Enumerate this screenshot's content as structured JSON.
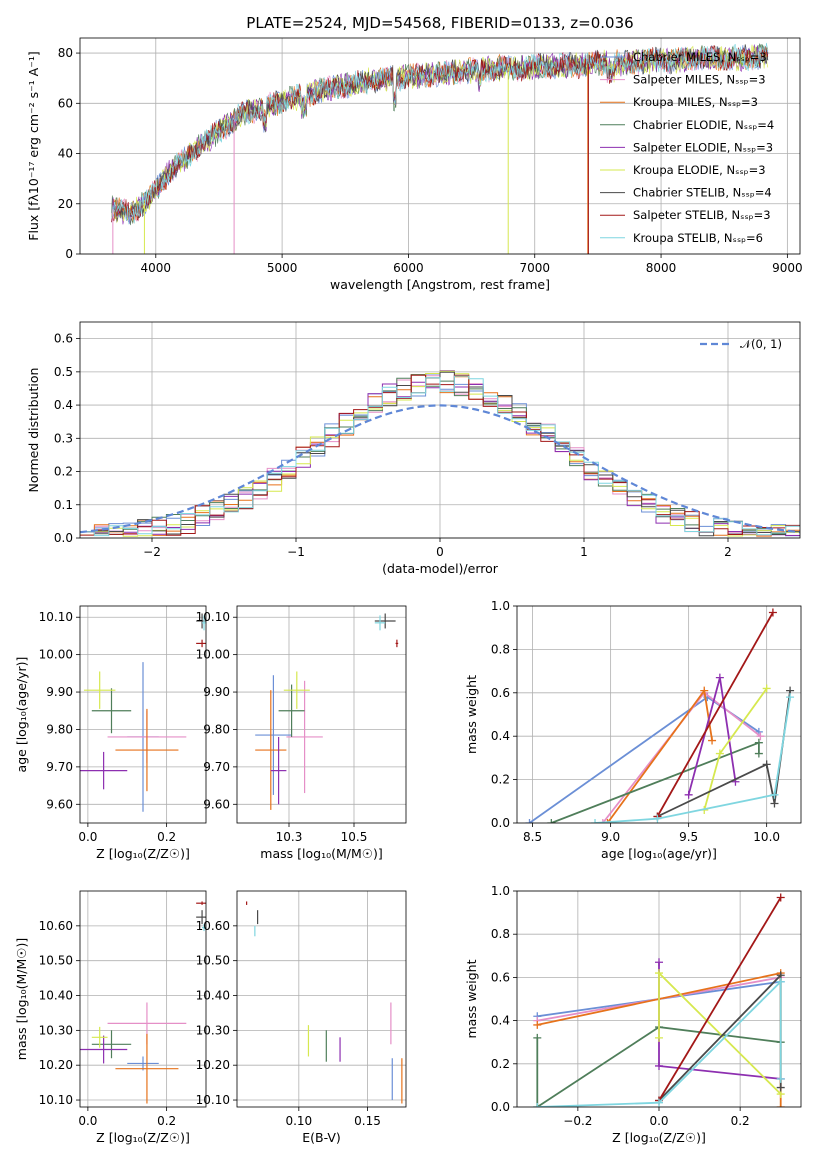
{
  "title": "PLATE=2524, MJD=54568, FIBERID=0133, z=0.036",
  "colors": {
    "Chabrier MILES": "#6b8fd6",
    "Salpeter MILES": "#e58fc7",
    "Kroupa MILES": "#e6721b",
    "Chabrier ELODIE": "#4f7e5a",
    "Salpeter ELODIE": "#8d2fb0",
    "Kroupa ELODIE": "#d6e84f",
    "Chabrier STELIB": "#4a4a4a",
    "Salpeter STELIB": "#a31818",
    "Kroupa STELIB": "#7fd6e0"
  },
  "chart_data": [
    {
      "id": "spectrum",
      "type": "line",
      "xlabel": "wavelength [Angstrom, rest frame]",
      "ylabel": "Flux [fλ10⁻¹⁷ erg cm⁻² s⁻¹ A⁻¹]",
      "xlim": [
        3400,
        9100
      ],
      "ylim": [
        0,
        86
      ],
      "xticks": [
        4000,
        5000,
        6000,
        7000,
        8000,
        9000
      ],
      "yticks": [
        0,
        20,
        40,
        60,
        80
      ],
      "legend": "right",
      "series_labels": [
        "Chabrier MILES, Nₛₛₚ=3",
        "Salpeter MILES, Nₛₛₚ=3",
        "Kroupa MILES, Nₛₛₚ=3",
        "Chabrier ELODIE, Nₛₛₚ=4",
        "Salpeter ELODIE, Nₛₛₚ=3",
        "Kroupa ELODIE, Nₛₛₚ=3",
        "Chabrier STELIB, Nₛₛₚ=4",
        "Salpeter STELIB, Nₛₛₚ=3",
        "Kroupa STELIB, Nₛₛₚ=6"
      ],
      "series_keys": [
        "Chabrier MILES",
        "Salpeter MILES",
        "Kroupa MILES",
        "Chabrier ELODIE",
        "Salpeter ELODIE",
        "Kroupa ELODIE",
        "Chabrier STELIB",
        "Salpeter STELIB",
        "Kroupa STELIB"
      ],
      "continuum": {
        "x": [
          3650,
          3800,
          3950,
          4100,
          4300,
          4500,
          4700,
          4900,
          5100,
          5300,
          5500,
          5700,
          5900,
          6100,
          6300,
          6500,
          6700,
          6900,
          7100,
          7300,
          7500,
          7700,
          7900,
          8100,
          8300,
          8500,
          8700,
          8850
        ],
        "y": [
          18,
          16,
          22,
          32,
          41,
          49,
          56,
          59,
          62,
          65,
          67,
          69,
          70,
          71,
          72,
          73,
          74,
          74,
          75,
          75,
          76,
          76,
          77,
          77,
          78,
          78,
          78,
          79
        ]
      },
      "dropouts": [
        {
          "key": "Salpeter MILES",
          "x": 3660,
          "y": 0
        },
        {
          "key": "Kroupa ELODIE",
          "x": 3910,
          "y": 0
        },
        {
          "key": "Salpeter MILES",
          "x": 4620,
          "y": 0
        },
        {
          "key": "Kroupa ELODIE",
          "x": 6790,
          "y": 0
        },
        {
          "key": "Kroupa MILES",
          "x": 7420,
          "y": 0
        },
        {
          "key": "Salpeter STELIB",
          "x": 7425,
          "y": 0
        }
      ]
    },
    {
      "id": "residual-hist",
      "type": "line",
      "xlabel": "(data-model)/error",
      "ylabel": "Normed distribution",
      "xlim": [
        -2.5,
        2.5
      ],
      "ylim": [
        0,
        0.65
      ],
      "xticks": [
        -2,
        -1,
        0,
        1,
        2
      ],
      "yticks": [
        0,
        0.1,
        0.2,
        0.3,
        0.4,
        0.5,
        0.6
      ],
      "legend": "top-right",
      "legend_label": "𝒩(0, 1)",
      "normal_color": "#5f87d6"
    },
    {
      "id": "age-vs-Z",
      "type": "scatter",
      "xlabel": "Z [log₁₀(Z/Z☉)]",
      "ylabel": "age  [log₁₀(age/yr)]",
      "xlim": [
        -0.02,
        0.3
      ],
      "ylim": [
        9.55,
        10.13
      ],
      "xticks": [
        0.0,
        0.2
      ],
      "yticks": [
        9.6,
        9.7,
        9.8,
        9.9,
        10.0,
        10.1
      ],
      "points": [
        {
          "key": "Chabrier MILES",
          "x": 0.14,
          "y": 9.78,
          "xerr": 0.04,
          "yerr": 0.2
        },
        {
          "key": "Salpeter MILES",
          "x": 0.15,
          "y": 9.78,
          "xerr": 0.1,
          "yerr": 0.07
        },
        {
          "key": "Kroupa MILES",
          "x": 0.15,
          "y": 9.745,
          "xerr": 0.08,
          "yerr": 0.11
        },
        {
          "key": "Chabrier ELODIE",
          "x": 0.06,
          "y": 9.85,
          "xerr": 0.05,
          "yerr": 0.06
        },
        {
          "key": "Salpeter ELODIE",
          "x": 0.04,
          "y": 9.69,
          "xerr": 0.06,
          "yerr": 0.05
        },
        {
          "key": "Kroupa ELODIE",
          "x": 0.03,
          "y": 9.905,
          "xerr": 0.04,
          "yerr": 0.05
        },
        {
          "key": "Chabrier STELIB",
          "x": 0.29,
          "y": 10.09,
          "xerr": 0.015,
          "yerr": 0.02
        },
        {
          "key": "Salpeter STELIB",
          "x": 0.29,
          "y": 10.03,
          "xerr": 0.015,
          "yerr": 0.01
        },
        {
          "key": "Kroupa STELIB",
          "x": 0.295,
          "y": 10.085,
          "xerr": 0.005,
          "yerr": 0.02
        }
      ]
    },
    {
      "id": "age-vs-mass",
      "type": "scatter",
      "xlabel": "mass [log₁₀(M/M☉)]",
      "ylabel": "",
      "xlim": [
        10.05,
        10.7
      ],
      "ylim": [
        9.55,
        10.13
      ],
      "xticks": [
        10.25,
        10.5
      ],
      "yticks": [
        9.6,
        9.7,
        9.8,
        9.9,
        10.0,
        10.1
      ],
      "points": [
        {
          "key": "Chabrier MILES",
          "x": 10.19,
          "y": 9.785,
          "xerr": 0.07,
          "yerr": 0.16
        },
        {
          "key": "Salpeter MILES",
          "x": 10.31,
          "y": 9.78,
          "xerr": 0.07,
          "yerr": 0.15
        },
        {
          "key": "Kroupa MILES",
          "x": 10.18,
          "y": 9.745,
          "xerr": 0.06,
          "yerr": 0.16
        },
        {
          "key": "Chabrier ELODIE",
          "x": 10.26,
          "y": 9.85,
          "xerr": 0.05,
          "yerr": 0.07
        },
        {
          "key": "Salpeter ELODIE",
          "x": 10.21,
          "y": 9.69,
          "xerr": 0.03,
          "yerr": 0.09
        },
        {
          "key": "Kroupa ELODIE",
          "x": 10.28,
          "y": 9.905,
          "xerr": 0.05,
          "yerr": 0.05
        },
        {
          "key": "Chabrier STELIB",
          "x": 10.62,
          "y": 10.09,
          "xerr": 0.04,
          "yerr": 0.02
        },
        {
          "key": "Salpeter STELIB",
          "x": 10.665,
          "y": 10.03,
          "xerr": 0.005,
          "yerr": 0.01
        },
        {
          "key": "Kroupa STELIB",
          "x": 10.6,
          "y": 10.085,
          "xerr": 0.02,
          "yerr": 0.02
        }
      ]
    },
    {
      "id": "weight-vs-age",
      "type": "line",
      "xlabel": "age  [log₁₀(age/yr)]",
      "ylabel": "mass weight",
      "xlim": [
        8.4,
        10.22
      ],
      "ylim": [
        0,
        1.0
      ],
      "xticks": [
        8.5,
        9.0,
        9.5,
        10.0
      ],
      "yticks": [
        0,
        0.2,
        0.4,
        0.6,
        0.8,
        1.0
      ],
      "series": [
        {
          "key": "Chabrier MILES",
          "x": [
            8.48,
            9.62,
            9.95
          ],
          "y": [
            0.0,
            0.58,
            0.42
          ]
        },
        {
          "key": "Salpeter MILES",
          "x": [
            8.95,
            9.6,
            9.96
          ],
          "y": [
            0.0,
            0.6,
            0.4
          ]
        },
        {
          "key": "Kroupa MILES",
          "x": [
            8.98,
            9.6,
            9.65
          ],
          "y": [
            0.0,
            0.61,
            0.38
          ]
        },
        {
          "key": "Chabrier ELODIE",
          "x": [
            8.62,
            9.95,
            9.95
          ],
          "y": [
            0.0,
            0.37,
            0.32
          ]
        },
        {
          "key": "Salpeter ELODIE",
          "x": [
            9.5,
            9.7,
            9.8
          ],
          "y": [
            0.13,
            0.67,
            0.19
          ]
        },
        {
          "key": "Kroupa ELODIE",
          "x": [
            9.6,
            9.7,
            10.0
          ],
          "y": [
            0.06,
            0.32,
            0.62
          ]
        },
        {
          "key": "Chabrier STELIB",
          "x": [
            9.3,
            10.0,
            10.05,
            10.15
          ],
          "y": [
            0.03,
            0.27,
            0.09,
            0.61
          ]
        },
        {
          "key": "Salpeter STELIB",
          "x": [
            9.3,
            10.04
          ],
          "y": [
            0.03,
            0.97
          ]
        },
        {
          "key": "Kroupa STELIB",
          "x": [
            8.9,
            9.3,
            10.05,
            10.15
          ],
          "y": [
            0.0,
            0.02,
            0.13,
            0.58
          ]
        }
      ]
    },
    {
      "id": "mass-vs-Z",
      "type": "scatter",
      "xlabel": "Z [log₁₀(Z/Z☉)]",
      "ylabel": "mass [log₁₀(M/M☉)]",
      "xlim": [
        -0.02,
        0.3
      ],
      "ylim": [
        10.08,
        10.7
      ],
      "xticks": [
        0.0,
        0.2
      ],
      "yticks": [
        10.1,
        10.2,
        10.3,
        10.4,
        10.5,
        10.6
      ],
      "points": [
        {
          "key": "Chabrier MILES",
          "x": 0.14,
          "y": 10.205,
          "xerr": 0.04,
          "yerr": 0.02
        },
        {
          "key": "Salpeter MILES",
          "x": 0.15,
          "y": 10.32,
          "xerr": 0.1,
          "yerr": 0.06
        },
        {
          "key": "Kroupa MILES",
          "x": 0.15,
          "y": 10.19,
          "xerr": 0.08,
          "yerr": 0.1
        },
        {
          "key": "Chabrier ELODIE",
          "x": 0.06,
          "y": 10.26,
          "xerr": 0.05,
          "yerr": 0.04
        },
        {
          "key": "Salpeter ELODIE",
          "x": 0.04,
          "y": 10.245,
          "xerr": 0.06,
          "yerr": 0.04
        },
        {
          "key": "Kroupa ELODIE",
          "x": 0.03,
          "y": 10.28,
          "xerr": 0.02,
          "yerr": 0.03
        },
        {
          "key": "Chabrier STELIB",
          "x": 0.29,
          "y": 10.625,
          "xerr": 0.015,
          "yerr": 0.02
        },
        {
          "key": "Salpeter STELIB",
          "x": 0.29,
          "y": 10.665,
          "xerr": 0.015,
          "yerr": 0.005
        },
        {
          "key": "Kroupa STELIB",
          "x": 0.295,
          "y": 10.595,
          "xerr": 0.005,
          "yerr": 0.01
        }
      ]
    },
    {
      "id": "mass-vs-ebv",
      "type": "scatter",
      "xlabel": "E(B-V)",
      "ylabel": "",
      "xlim": [
        0.055,
        0.178
      ],
      "ylim": [
        10.08,
        10.7
      ],
      "xticks": [
        0.1,
        0.15
      ],
      "yticks": [
        10.1,
        10.2,
        10.3,
        10.4,
        10.5,
        10.6
      ],
      "points": [
        {
          "key": "Chabrier MILES",
          "x": 0.168,
          "y": 10.16,
          "xerr": 0.0,
          "yerr": 0.06
        },
        {
          "key": "Salpeter MILES",
          "x": 0.167,
          "y": 10.32,
          "xerr": 0.0,
          "yerr": 0.06
        },
        {
          "key": "Kroupa MILES",
          "x": 0.175,
          "y": 10.155,
          "xerr": 0.0,
          "yerr": 0.065
        },
        {
          "key": "Chabrier ELODIE",
          "x": 0.12,
          "y": 10.255,
          "xerr": 0.0,
          "yerr": 0.045
        },
        {
          "key": "Salpeter ELODIE",
          "x": 0.13,
          "y": 10.245,
          "xerr": 0.0,
          "yerr": 0.035
        },
        {
          "key": "Kroupa ELODIE",
          "x": 0.107,
          "y": 10.27,
          "xerr": 0.0,
          "yerr": 0.045
        },
        {
          "key": "Chabrier STELIB",
          "x": 0.07,
          "y": 10.625,
          "xerr": 0.0,
          "yerr": 0.02
        },
        {
          "key": "Salpeter STELIB",
          "x": 0.062,
          "y": 10.665,
          "xerr": 0.0,
          "yerr": 0.005
        },
        {
          "key": "Kroupa STELIB",
          "x": 0.068,
          "y": 10.585,
          "xerr": 0.0,
          "yerr": 0.015
        }
      ]
    },
    {
      "id": "weight-vs-Z",
      "type": "line",
      "xlabel": "Z [log₁₀(Z/Z☉)]",
      "ylabel": "mass weight",
      "xlim": [
        -0.35,
        0.35
      ],
      "ylim": [
        0,
        1.0
      ],
      "xticks": [
        -0.2,
        0.0,
        0.2
      ],
      "yticks": [
        0,
        0.2,
        0.4,
        0.6,
        0.8,
        1.0
      ],
      "series": [
        {
          "key": "Chabrier MILES",
          "x": [
            -0.3,
            0.3
          ],
          "y": [
            0.42,
            0.58
          ]
        },
        {
          "key": "Salpeter MILES",
          "x": [
            -0.3,
            0.3
          ],
          "y": [
            0.4,
            0.6
          ]
        },
        {
          "key": "Kroupa MILES",
          "x": [
            -0.3,
            0.3,
            0.3
          ],
          "y": [
            0.38,
            0.62,
            0.0
          ]
        },
        {
          "key": "Chabrier ELODIE",
          "x": [
            -0.3,
            -0.3,
            0.0,
            0.3
          ],
          "y": [
            0.32,
            0.0,
            0.37,
            0.3
          ]
        },
        {
          "key": "Salpeter ELODIE",
          "x": [
            0.0,
            0.0,
            0.3
          ],
          "y": [
            0.67,
            0.19,
            0.13
          ]
        },
        {
          "key": "Kroupa ELODIE",
          "x": [
            0.0,
            0.0,
            0.3
          ],
          "y": [
            0.32,
            0.62,
            0.06
          ]
        },
        {
          "key": "Chabrier STELIB",
          "x": [
            0.0,
            0.3,
            0.3
          ],
          "y": [
            0.03,
            0.61,
            0.09
          ]
        },
        {
          "key": "Salpeter STELIB",
          "x": [
            0.0,
            0.3
          ],
          "y": [
            0.03,
            0.97
          ]
        },
        {
          "key": "Kroupa STELIB",
          "x": [
            -0.3,
            0.0,
            0.3,
            0.3
          ],
          "y": [
            0.0,
            0.02,
            0.58,
            0.13
          ]
        }
      ]
    }
  ]
}
